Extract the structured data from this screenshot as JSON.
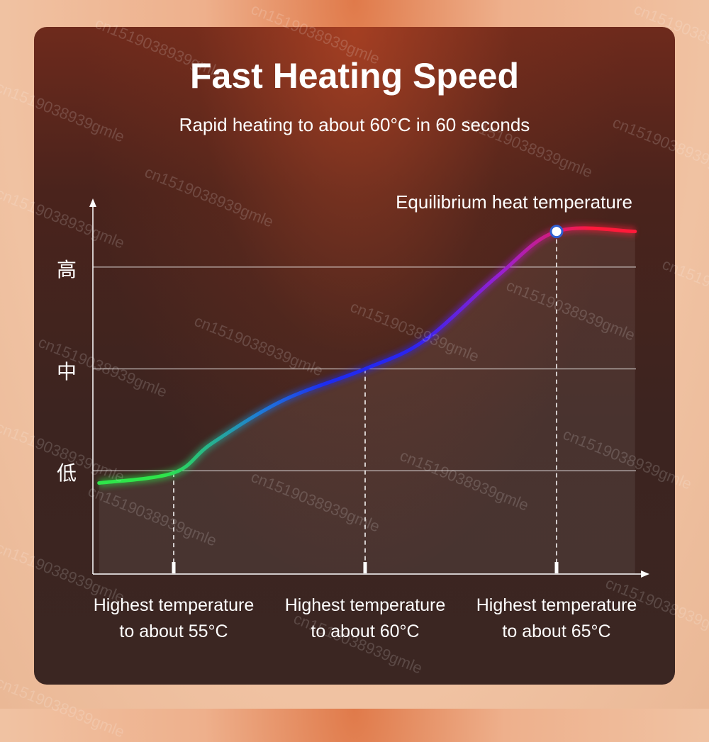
{
  "title": "Fast Heating Speed",
  "subtitle": "Rapid heating to about 60°C in 60 seconds",
  "watermark": "cn1519038939gmle",
  "colors": {
    "green": "#2ee64a",
    "blue": "#1d2cf0",
    "purple": "#9a1fd0",
    "red": "#ff1a3a"
  },
  "chart_data": {
    "type": "line",
    "title": "Fast Heating Speed",
    "y_levels": [
      {
        "value": 1,
        "label": "低"
      },
      {
        "value": 2,
        "label": "中"
      },
      {
        "value": 3,
        "label": "高"
      }
    ],
    "x_ticks": [
      {
        "x": 1,
        "line1": "Highest temperature",
        "line2": "to about 55°C"
      },
      {
        "x": 2,
        "line1": "Highest temperature",
        "line2": "to about 60°C"
      },
      {
        "x": 3,
        "line1": "Highest temperature",
        "line2": "to about 65°C"
      }
    ],
    "annotation": {
      "x": 3,
      "y": 3.35,
      "label": "Equilibrium heat temperature"
    },
    "x": [
      0.61,
      1.0,
      1.2,
      1.57,
      2.0,
      2.31,
      2.69,
      3.0,
      3.41
    ],
    "y": [
      0.88,
      0.98,
      1.27,
      1.69,
      2.0,
      2.28,
      2.91,
      3.35,
      3.35
    ],
    "xlim": [
      0.58,
      3.5
    ],
    "ylim": [
      0,
      3.6
    ],
    "grid": true
  }
}
